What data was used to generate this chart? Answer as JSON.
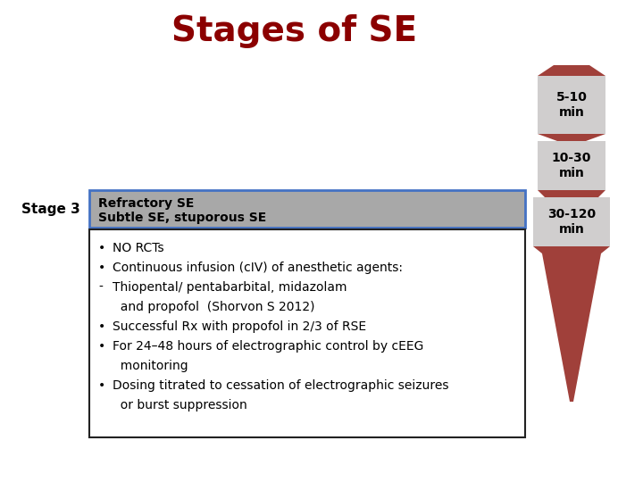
{
  "title": "Stages of SE",
  "title_color": "#8B0000",
  "title_fontsize": 28,
  "bg_color": "#ffffff",
  "stage3_label": "Stage 3",
  "header_text_line1": "Refractory SE",
  "header_text_line2": "Subtle SE, stuporous SE",
  "header_bg": "#A8A8A8",
  "header_border": "#4472C4",
  "bullet_box_border": "#222222",
  "bullet_box_bg": "#ffffff",
  "funnel_red": "#A0403A",
  "funnel_gray": "#D0CECE",
  "stage_boxes": [
    {
      "label": "5-10\nmin",
      "bg": "#D0CECE",
      "text_color": "#000000"
    },
    {
      "label": "10-30\nmin",
      "bg": "#D0CECE",
      "text_color": "#000000"
    },
    {
      "label": "30-120\nmin",
      "bg": "#D0CECE",
      "text_color": "#000000"
    }
  ],
  "figsize": [
    7.2,
    5.4
  ],
  "dpi": 100
}
